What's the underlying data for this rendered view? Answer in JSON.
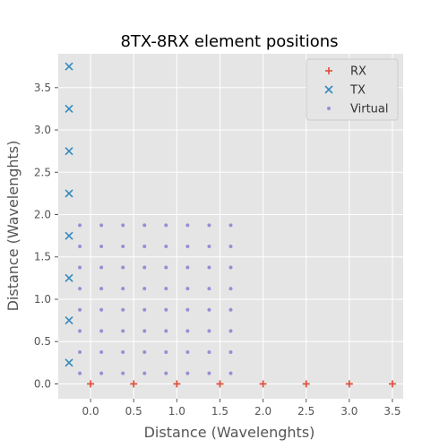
{
  "chart_data": {
    "type": "scatter",
    "title": "8TX-8RX element positions",
    "xlabel": "Distance (Wavelenghts)",
    "ylabel": "Distance (Wavelenghts)",
    "xlim": [
      -0.375,
      3.625
    ],
    "ylim": [
      -0.175,
      3.9
    ],
    "xticks": [
      "0.0",
      "0.5",
      "1.0",
      "1.5",
      "2.0",
      "2.5",
      "3.0",
      "3.5"
    ],
    "yticks": [
      "0.0",
      "0.5",
      "1.0",
      "1.5",
      "2.0",
      "2.5",
      "3.0",
      "3.5"
    ],
    "grid": true,
    "legend_position": "top-right",
    "series": [
      {
        "name": "RX",
        "marker": "plus",
        "color": "#E24A33",
        "x": [
          0.0,
          0.5,
          1.0,
          1.5,
          2.0,
          2.5,
          3.0,
          3.5
        ],
        "y": [
          0,
          0,
          0,
          0,
          0,
          0,
          0,
          0
        ]
      },
      {
        "name": "TX",
        "marker": "x",
        "color": "#348ABD",
        "x": [
          -0.25,
          -0.25,
          -0.25,
          -0.25,
          -0.25,
          -0.25,
          -0.25,
          -0.25
        ],
        "y": [
          0.25,
          0.75,
          1.25,
          1.75,
          2.25,
          2.75,
          3.25,
          3.75
        ]
      },
      {
        "name": "Virtual",
        "marker": "dot",
        "color": "#988ED5",
        "x_values": [
          -0.125,
          0.125,
          0.375,
          0.625,
          0.875,
          1.125,
          1.375,
          1.625
        ],
        "y_values": [
          0.125,
          0.375,
          0.625,
          0.875,
          1.125,
          1.375,
          1.625,
          1.875
        ]
      }
    ]
  }
}
